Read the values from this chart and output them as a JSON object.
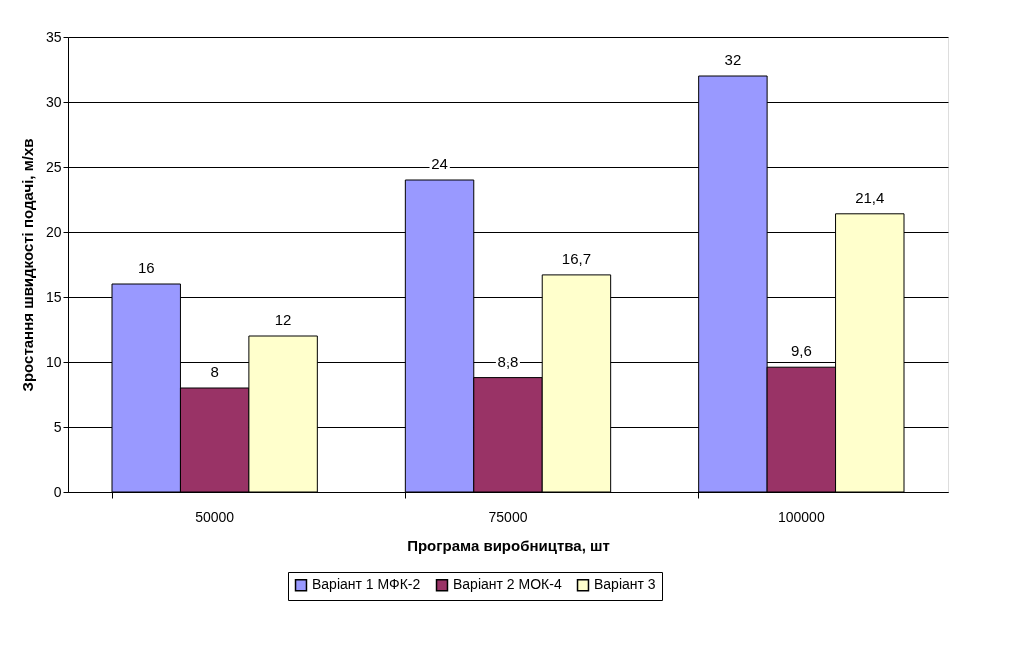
{
  "chart_data": {
    "type": "bar",
    "xlabel": "Програма виробництва, шт",
    "ylabel": "Зростання швидкості подачі, м/хв",
    "categories": [
      "50000",
      "75000",
      "100000"
    ],
    "series": [
      {
        "name": "Варіант 1 МФК-2",
        "color": "#9999ff",
        "values": [
          16,
          24,
          32
        ],
        "value_labels": [
          "16",
          "24",
          "32"
        ]
      },
      {
        "name": "Варіант 2 МОК-4",
        "color": "#993366",
        "values": [
          8,
          8.8,
          9.6
        ],
        "value_labels": [
          "8",
          "8,8",
          "9,6"
        ]
      },
      {
        "name": "Варіант 3",
        "color": "#ffffcc",
        "values": [
          12,
          16.7,
          21.4
        ],
        "value_labels": [
          "12",
          "16,7",
          "21,4"
        ]
      }
    ],
    "ylim": [
      0,
      35
    ],
    "yticks": [
      0,
      5,
      10,
      15,
      20,
      25,
      30,
      35
    ],
    "grid": "y",
    "legend": "bottom"
  }
}
